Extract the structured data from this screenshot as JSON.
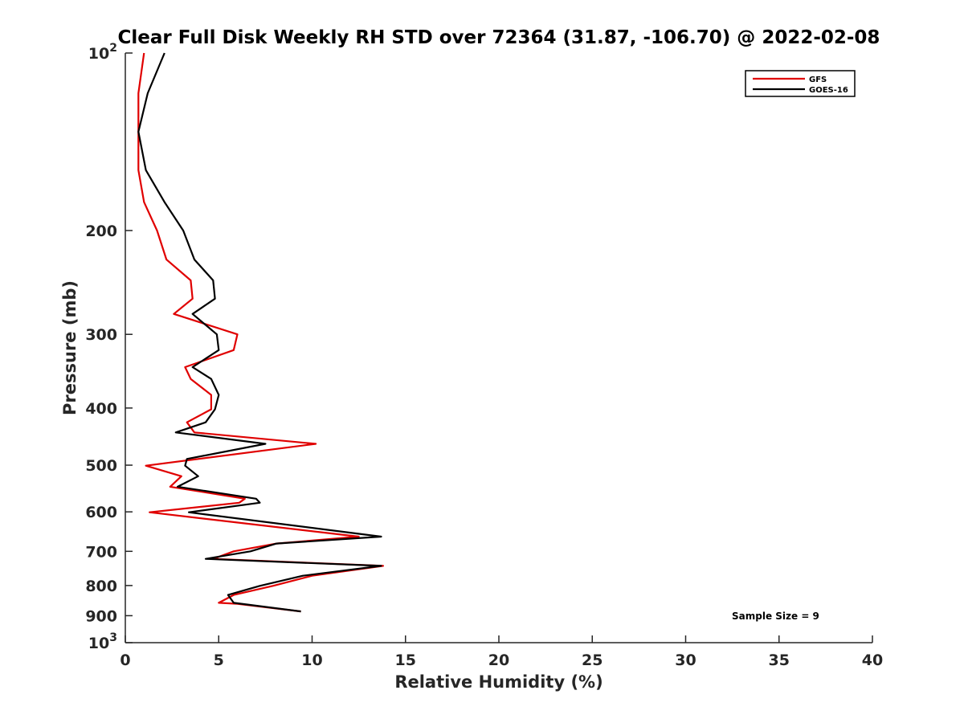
{
  "chart_data": {
    "type": "line",
    "title": "Clear Full Disk Weekly RH STD over 72364 (31.87, -106.70) @ 2022-02-08",
    "xlabel": "Relative Humidity (%)",
    "ylabel": "Pressure (mb)",
    "xlim": [
      0,
      40
    ],
    "ylim": [
      100,
      1000
    ],
    "y_scale": "log",
    "y_reversed": true,
    "grid": false,
    "legend_position": "top-right",
    "x_ticks": [
      "0",
      "5",
      "10",
      "15",
      "20",
      "25",
      "30",
      "35",
      "40"
    ],
    "y_ticks": [
      {
        "value": 100,
        "base": "10",
        "exp": "2"
      },
      {
        "value": 200,
        "label": "200"
      },
      {
        "value": 300,
        "label": "300"
      },
      {
        "value": 400,
        "label": "400"
      },
      {
        "value": 500,
        "label": "500"
      },
      {
        "value": 600,
        "label": "600"
      },
      {
        "value": 700,
        "label": "700"
      },
      {
        "value": 800,
        "label": "800"
      },
      {
        "value": 900,
        "label": "900"
      },
      {
        "value": 1000,
        "base": "10",
        "exp": "3"
      }
    ],
    "annotation": "Sample Size = 9",
    "series": [
      {
        "name": "GFS",
        "color": "#e00000",
        "points": [
          [
            1.0,
            100
          ],
          [
            0.7,
            117
          ],
          [
            0.7,
            136
          ],
          [
            0.7,
            158
          ],
          [
            1.0,
            179
          ],
          [
            1.7,
            200
          ],
          [
            2.2,
            224
          ],
          [
            3.5,
            243
          ],
          [
            3.6,
            261
          ],
          [
            2.6,
            277
          ],
          [
            6.0,
            300
          ],
          [
            5.8,
            319
          ],
          [
            3.2,
            341
          ],
          [
            3.5,
            357
          ],
          [
            4.6,
            380
          ],
          [
            4.6,
            402
          ],
          [
            3.3,
            423
          ],
          [
            3.7,
            440
          ],
          [
            10.2,
            460
          ],
          [
            1.1,
            501
          ],
          [
            3.0,
            522
          ],
          [
            2.4,
            544
          ],
          [
            6.4,
            570
          ],
          [
            6.1,
            579
          ],
          [
            1.3,
            601
          ],
          [
            12.5,
            661
          ],
          [
            8.1,
            679
          ],
          [
            5.8,
            700
          ],
          [
            4.7,
            721
          ],
          [
            13.8,
            741
          ],
          [
            10.0,
            770
          ],
          [
            7.9,
            801
          ],
          [
            5.8,
            830
          ],
          [
            5.0,
            856
          ],
          [
            6.0,
            859
          ],
          [
            9.4,
            885
          ]
        ]
      },
      {
        "name": "GOES-16",
        "color": "#000000",
        "points": [
          [
            2.1,
            100
          ],
          [
            1.2,
            117
          ],
          [
            0.7,
            136
          ],
          [
            1.1,
            158
          ],
          [
            2.1,
            179
          ],
          [
            3.1,
            200
          ],
          [
            3.7,
            224
          ],
          [
            4.7,
            243
          ],
          [
            4.8,
            261
          ],
          [
            3.6,
            277
          ],
          [
            4.9,
            300
          ],
          [
            5.0,
            319
          ],
          [
            3.6,
            341
          ],
          [
            4.6,
            357
          ],
          [
            5.0,
            380
          ],
          [
            4.8,
            402
          ],
          [
            4.3,
            423
          ],
          [
            2.7,
            440
          ],
          [
            7.5,
            460
          ],
          [
            3.3,
            488
          ],
          [
            3.2,
            501
          ],
          [
            3.9,
            522
          ],
          [
            2.8,
            544
          ],
          [
            7.0,
            570
          ],
          [
            7.2,
            579
          ],
          [
            3.4,
            601
          ],
          [
            13.7,
            661
          ],
          [
            8.1,
            679
          ],
          [
            6.7,
            700
          ],
          [
            4.3,
            721
          ],
          [
            13.7,
            741
          ],
          [
            9.5,
            770
          ],
          [
            7.2,
            801
          ],
          [
            5.5,
            830
          ],
          [
            5.8,
            856
          ],
          [
            9.4,
            885
          ]
        ]
      }
    ]
  }
}
